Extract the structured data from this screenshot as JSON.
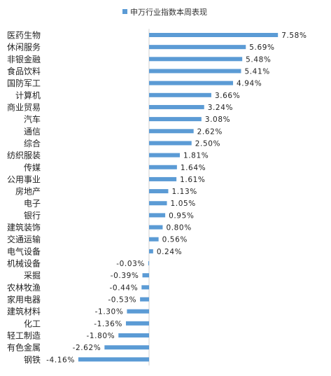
{
  "chart_data": {
    "type": "bar",
    "orientation": "horizontal",
    "legend": {
      "label": "申万行业指数本周表现",
      "position": "top"
    },
    "series": [
      {
        "name": "申万行业指数本周表现",
        "color": "#5b9bd5",
        "categories": [
          "医药生物",
          "休闲服务",
          "非银金融",
          "食品饮料",
          "国防军工",
          "计算机",
          "商业贸易",
          "汽车",
          "通信",
          "综合",
          "纺织服装",
          "传媒",
          "公用事业",
          "房地产",
          "电子",
          "银行",
          "建筑装饰",
          "交通运输",
          "电气设备",
          "机械设备",
          "采掘",
          "农林牧渔",
          "家用电器",
          "建筑材料",
          "化工",
          "轻工制造",
          "有色金属",
          "钢铁"
        ],
        "values": [
          7.58,
          5.69,
          5.48,
          5.41,
          4.94,
          3.66,
          3.24,
          3.08,
          2.62,
          2.5,
          1.81,
          1.64,
          1.61,
          1.13,
          1.05,
          0.95,
          0.8,
          0.56,
          0.24,
          -0.03,
          -0.39,
          -0.44,
          -0.53,
          -1.3,
          -1.36,
          -1.8,
          -2.62,
          -4.16
        ],
        "value_labels": [
          "7.58%",
          "5.69%",
          "5.48%",
          "5.41%",
          "4.94%",
          "3.66%",
          "3.24%",
          "3.08%",
          "2.62%",
          "2.50%",
          "1.81%",
          "1.64%",
          "1.61%",
          "1.13%",
          "1.05%",
          "0.95%",
          "0.80%",
          "0.56%",
          "0.24%",
          "-0.03%",
          "-0.39%",
          "-0.44%",
          "-0.53%",
          "-1.30%",
          "-1.36%",
          "-1.80%",
          "-2.62%",
          "-4.16%"
        ]
      }
    ],
    "grid": false
  }
}
